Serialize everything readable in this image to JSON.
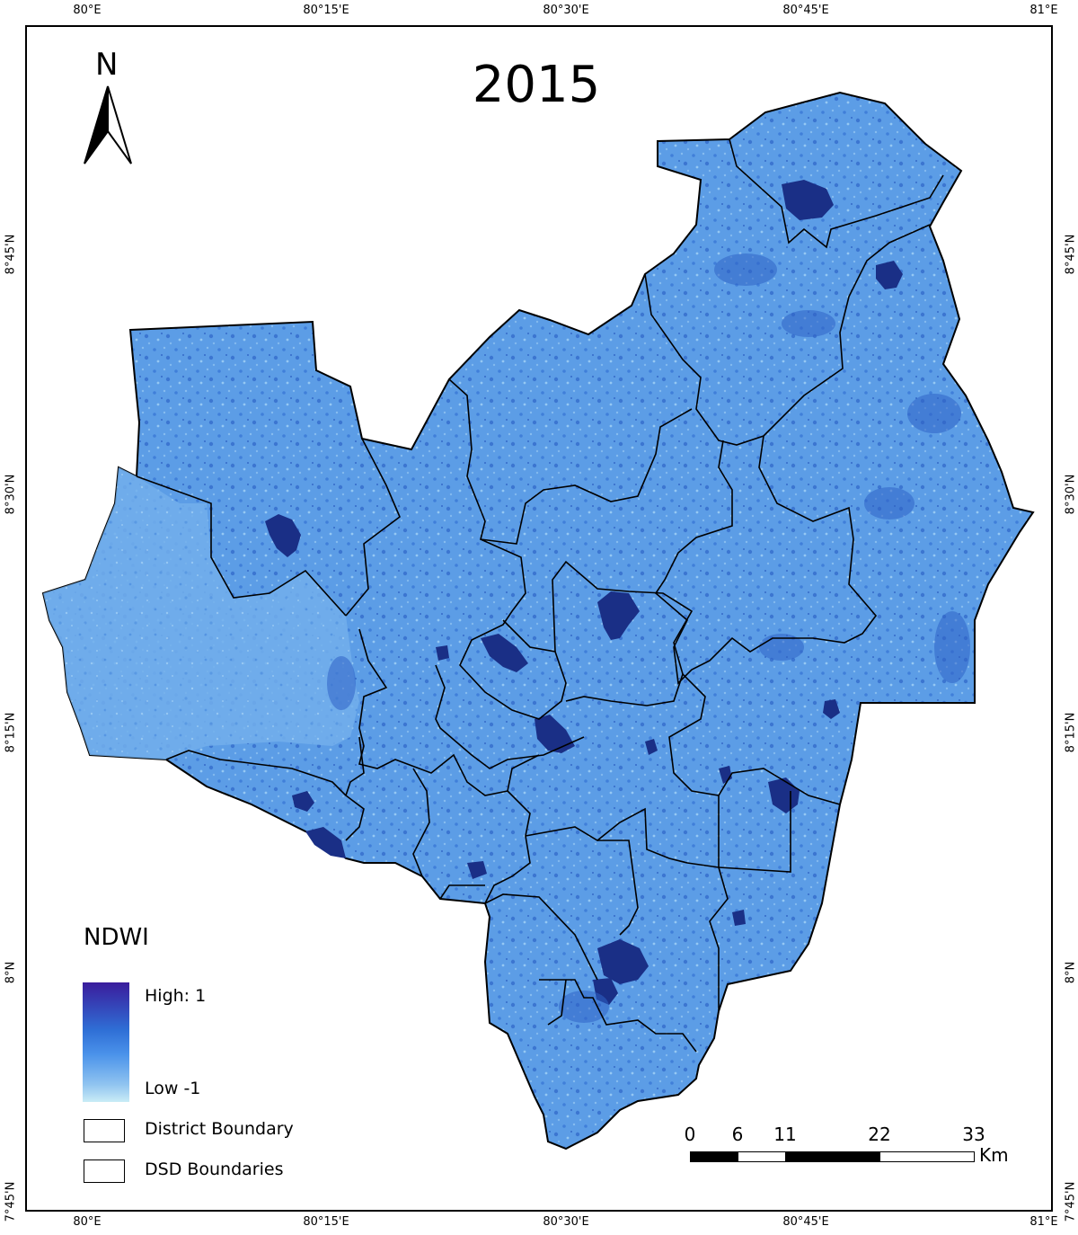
{
  "title": "2015",
  "north_label": "N",
  "longitude_ticks": [
    "80°E",
    "80°15'E",
    "80°30'E",
    "80°45'E",
    "81°E"
  ],
  "latitude_ticks": [
    "8°45'N",
    "8°30'N",
    "8°15'N",
    "8°N",
    "7°45'N"
  ],
  "legend": {
    "title": "NDWI",
    "high_label": "High: 1",
    "low_label": "Low -1",
    "district_label": "District Boundary",
    "dsd_label": "DSD Boundaries"
  },
  "scale_bar": {
    "labels": [
      "0",
      "6",
      "11",
      "22",
      "33"
    ],
    "unit": "Km"
  },
  "colors": {
    "land_fill": "#5c9de6",
    "water_dark": "#1a2f86",
    "boundary": "#000000"
  }
}
